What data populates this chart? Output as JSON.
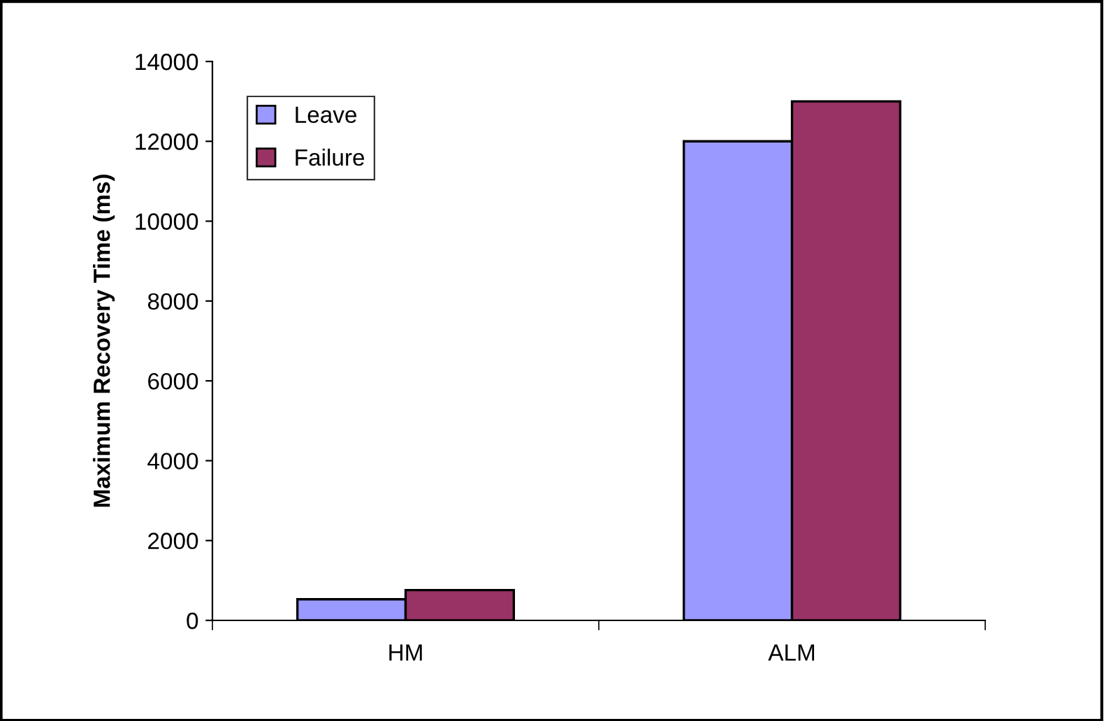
{
  "chart_data": {
    "type": "bar",
    "ylabel": "Maximum Recovery Time (ms)",
    "categories": [
      "HM",
      "ALM"
    ],
    "series": [
      {
        "name": "Leave",
        "color": "#9999ff",
        "values": [
          530,
          12000
        ]
      },
      {
        "name": "Failure",
        "color": "#993366",
        "values": [
          760,
          13000
        ]
      }
    ],
    "ylim": [
      0,
      14000
    ],
    "yticks": [
      0,
      2000,
      4000,
      6000,
      8000,
      10000,
      12000,
      14000
    ],
    "grid": false,
    "legend": "top left"
  }
}
